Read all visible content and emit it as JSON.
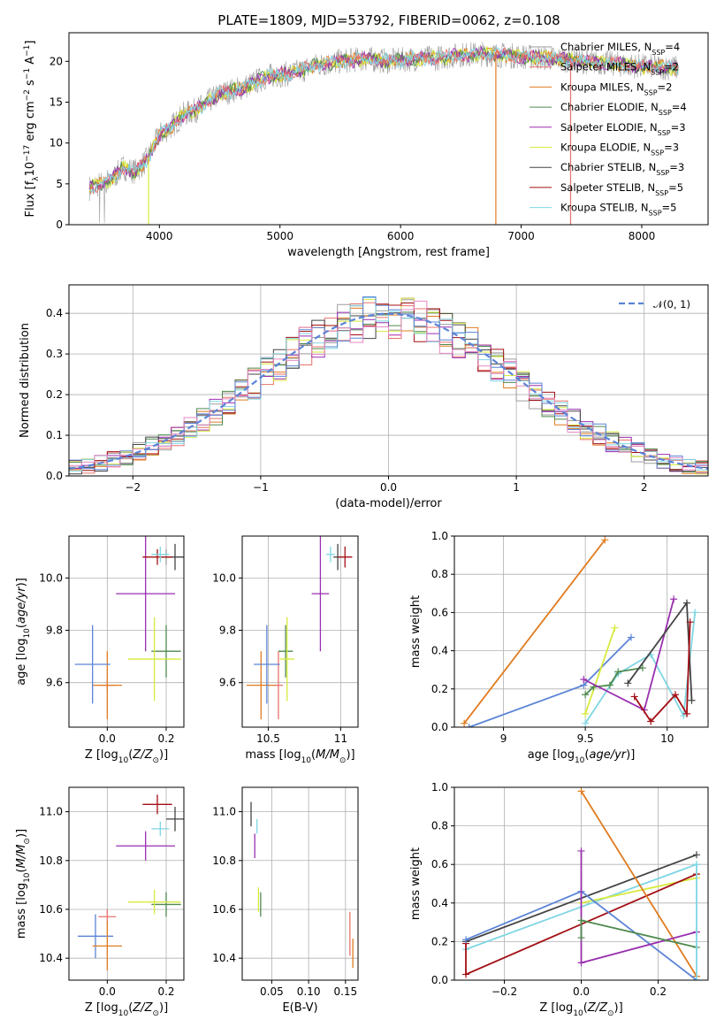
{
  "title": "PLATE=1809, MJD=53792, FIBERID=0062, z=0.108",
  "models": [
    {
      "key": "cm",
      "label": "Chabrier MILES, N",
      "sub": "SSP",
      "n": "=4",
      "color": "#9e9e9e"
    },
    {
      "key": "sm",
      "label": "Salpeter MILES, N",
      "sub": "SSP",
      "n": "=2",
      "color": "#e8736b"
    },
    {
      "key": "km",
      "label": "Kroupa MILES, N",
      "sub": "SSP",
      "n": "=2",
      "color": "#e07b20"
    },
    {
      "key": "ce",
      "label": "Chabrier ELODIE, N",
      "sub": "SSP",
      "n": "=4",
      "color": "#4f8a4f"
    },
    {
      "key": "se",
      "label": "Salpeter ELODIE, N",
      "sub": "SSP",
      "n": "=3",
      "color": "#9a2fb0"
    },
    {
      "key": "ke",
      "label": "Kroupa ELODIE, N",
      "sub": "SSP",
      "n": "=3",
      "color": "#d7ea3c"
    },
    {
      "key": "cs",
      "label": "Chabrier STELIB, N",
      "sub": "SSP",
      "n": "=3",
      "color": "#444444"
    },
    {
      "key": "ss",
      "label": "Salpeter STELIB, N",
      "sub": "SSP",
      "n": "=5",
      "color": "#a30f15"
    },
    {
      "key": "ks",
      "label": "Kroupa STELIB, N",
      "sub": "SSP",
      "n": "=5",
      "color": "#7fd6e3"
    }
  ],
  "chart_data": [
    {
      "id": "spectrum",
      "type": "line",
      "xlabel": "wavelength [Angstrom, rest frame]",
      "ylabel": "Flux [f",
      "xlim": [
        3250,
        8550
      ],
      "ylim": [
        0,
        23.5
      ],
      "xticks": [
        4000,
        5000,
        6000,
        7000,
        8000
      ],
      "yticks": [
        0,
        5,
        10,
        15,
        20
      ],
      "continuum": {
        "x": [
          3420,
          3600,
          3700,
          3800,
          3900,
          4000,
          4100,
          4200,
          4300,
          4500,
          4700,
          4900,
          5100,
          5300,
          5500,
          5700,
          5900,
          6100,
          6300,
          6500,
          6700,
          6900,
          7100,
          7300,
          7500,
          7700,
          7900,
          8100,
          8300
        ],
        "y": [
          4.5,
          5.5,
          7,
          6.5,
          8,
          11,
          12,
          13.5,
          14,
          16,
          16.8,
          18.2,
          18.5,
          19.5,
          20,
          20.3,
          20,
          20.3,
          20.4,
          20.8,
          20.9,
          20.7,
          20.5,
          20.3,
          20.0,
          19.8,
          19.5,
          19.3,
          19.2
        ]
      },
      "legend": "right"
    },
    {
      "id": "residuals",
      "type": "bar",
      "xlabel": "(data-model)/error",
      "ylabel": "Normed distribution",
      "xlim": [
        -2.5,
        2.5
      ],
      "ylim": [
        0,
        0.47
      ],
      "xticks": [
        -2,
        -1,
        0,
        1,
        2
      ],
      "yticks": [
        0.0,
        0.1,
        0.2,
        0.3,
        0.4
      ],
      "gauss_label": "𝒩(0, 1)",
      "bins": 50,
      "legend": "top-right"
    },
    {
      "id": "age_vs_Z",
      "type": "scatter",
      "xlabel": "Z [log",
      "ylabel": "age  [log",
      "xlim": [
        -0.13,
        0.26
      ],
      "ylim": [
        9.43,
        10.16
      ],
      "xticks": [
        0.0,
        0.2
      ],
      "yticks": [
        9.6,
        9.8,
        10.0
      ],
      "points": [
        {
          "m": "cm",
          "x": 0.2,
          "y": 10.08,
          "ex": 0.02,
          "ey": 0.03
        },
        {
          "m": "sm",
          "x": 0.0,
          "y": 9.59,
          "ex": 0.03,
          "ey": 0.02
        },
        {
          "m": "km",
          "x": 0.0,
          "y": 9.59,
          "ex": 0.05,
          "ey": 0.13
        },
        {
          "m": "ce",
          "x": 0.2,
          "y": 9.72,
          "ex": 0.05,
          "ey": 0.1
        },
        {
          "m": "se",
          "x": 0.13,
          "y": 9.94,
          "ex": 0.1,
          "ey": 0.22
        },
        {
          "m": "ke",
          "x": 0.16,
          "y": 9.69,
          "ex": 0.09,
          "ey": 0.16
        },
        {
          "m": "cs",
          "x": 0.23,
          "y": 10.08,
          "ex": 0.03,
          "ey": 0.05
        },
        {
          "m": "ss",
          "x": 0.17,
          "y": 10.08,
          "ex": 0.05,
          "ey": 0.03
        },
        {
          "m": "ks",
          "x": 0.18,
          "y": 10.09,
          "ex": 0.03,
          "ey": 0.03
        },
        {
          "m": "blue",
          "x": -0.05,
          "y": 9.67,
          "ex": 0.06,
          "ey": 0.15
        }
      ]
    },
    {
      "id": "age_vs_mass",
      "type": "scatter",
      "xlabel": "mass [log",
      "ylabel": "",
      "xlim": [
        10.32,
        11.12
      ],
      "ylim": [
        9.43,
        10.16
      ],
      "xticks": [
        10.5,
        11.0
      ],
      "yticks": [
        9.6,
        9.8,
        10.0
      ],
      "points": [
        {
          "m": "sm",
          "x": 10.57,
          "y": 9.59,
          "ex": 0.03,
          "ey": 0.13
        },
        {
          "m": "km",
          "x": 10.45,
          "y": 9.59,
          "ex": 0.1,
          "ey": 0.13
        },
        {
          "m": "ce",
          "x": 10.62,
          "y": 9.72,
          "ex": 0.05,
          "ey": 0.1
        },
        {
          "m": "ke",
          "x": 10.63,
          "y": 9.69,
          "ex": 0.05,
          "ey": 0.16
        },
        {
          "m": "blue",
          "x": 10.49,
          "y": 9.67,
          "ex": 0.09,
          "ey": 0.15
        },
        {
          "m": "se",
          "x": 10.86,
          "y": 9.94,
          "ex": 0.06,
          "ey": 0.22
        },
        {
          "m": "ks",
          "x": 10.93,
          "y": 10.09,
          "ex": 0.03,
          "ey": 0.03
        },
        {
          "m": "cs",
          "x": 10.98,
          "y": 10.08,
          "ex": 0.03,
          "ey": 0.05
        },
        {
          "m": "ss",
          "x": 11.03,
          "y": 10.08,
          "ex": 0.05,
          "ey": 0.04
        }
      ]
    },
    {
      "id": "mw_vs_age",
      "type": "line",
      "xlabel": "age  [log",
      "ylabel": "mass weight",
      "xlim": [
        8.7,
        10.25
      ],
      "ylim": [
        0,
        1
      ],
      "xticks": [
        9.0,
        9.5,
        10.0
      ],
      "yticks": [
        0.0,
        0.2,
        0.4,
        0.6,
        0.8,
        1.0
      ],
      "series": [
        {
          "m": "km",
          "x": [
            8.76,
            9.62
          ],
          "y": [
            0.02,
            0.98
          ]
        },
        {
          "m": "blue",
          "x": [
            8.79,
            9.49,
            9.78
          ],
          "y": [
            0.0,
            0.22,
            0.47
          ]
        },
        {
          "m": "ke",
          "x": [
            9.5,
            9.68
          ],
          "y": [
            0.07,
            0.52
          ]
        },
        {
          "m": "ks",
          "x": [
            9.5,
            9.7,
            9.9,
            10.1,
            10.17
          ],
          "y": [
            0.02,
            0.28,
            0.38,
            0.06,
            0.6
          ]
        },
        {
          "m": "ce",
          "x": [
            9.5,
            9.55,
            9.65,
            9.7,
            9.85
          ],
          "y": [
            0.17,
            0.21,
            0.22,
            0.29,
            0.31
          ]
        },
        {
          "m": "se",
          "x": [
            9.49,
            9.86,
            10.04
          ],
          "y": [
            0.25,
            0.09,
            0.67
          ]
        },
        {
          "m": "cs",
          "x": [
            9.76,
            10.12,
            10.15
          ],
          "y": [
            0.23,
            0.65,
            0.14
          ]
        },
        {
          "m": "ss",
          "x": [
            9.8,
            9.9,
            10.05,
            10.12,
            10.14
          ],
          "y": [
            0.16,
            0.03,
            0.17,
            0.07,
            0.55
          ]
        }
      ]
    },
    {
      "id": "mass_vs_Z",
      "type": "scatter",
      "xlabel": "Z [log",
      "ylabel": "mass [log",
      "xlim": [
        -0.13,
        0.26
      ],
      "ylim": [
        10.31,
        11.1
      ],
      "xticks": [
        0.0,
        0.2
      ],
      "yticks": [
        10.4,
        10.6,
        10.8,
        11.0
      ],
      "points": [
        {
          "m": "ss",
          "x": 0.17,
          "y": 11.03,
          "ex": 0.05,
          "ey": 0.04
        },
        {
          "m": "cs",
          "x": 0.23,
          "y": 10.97,
          "ex": 0.03,
          "ey": 0.05
        },
        {
          "m": "ks",
          "x": 0.18,
          "y": 10.93,
          "ex": 0.03,
          "ey": 0.03
        },
        {
          "m": "se",
          "x": 0.13,
          "y": 10.86,
          "ex": 0.1,
          "ey": 0.06
        },
        {
          "m": "ce",
          "x": 0.2,
          "y": 10.62,
          "ex": 0.05,
          "ey": 0.05
        },
        {
          "m": "ke",
          "x": 0.16,
          "y": 10.63,
          "ex": 0.09,
          "ey": 0.05
        },
        {
          "m": "blue",
          "x": -0.04,
          "y": 10.49,
          "ex": 0.06,
          "ey": 0.09
        },
        {
          "m": "sm",
          "x": 0.0,
          "y": 10.57,
          "ex": 0.03,
          "ey": 0.03
        },
        {
          "m": "km",
          "x": 0.0,
          "y": 10.45,
          "ex": 0.05,
          "ey": 0.1
        }
      ]
    },
    {
      "id": "mass_vs_ebv",
      "type": "scatter",
      "xlabel": "E(B-V)",
      "ylabel": "",
      "xlim": [
        0.01,
        0.167
      ],
      "ylim": [
        10.31,
        11.1
      ],
      "xticks": [
        0.05,
        0.1,
        0.15
      ],
      "xtick_labels": [
        "0.05",
        "0.10",
        "0.15"
      ],
      "yticks": [
        10.4,
        10.6,
        10.8,
        11.0
      ],
      "points": [
        {
          "m": "cs",
          "x": 0.022,
          "y": 10.99,
          "ex": 0,
          "ey": 0.05
        },
        {
          "m": "ks",
          "x": 0.03,
          "y": 10.94,
          "ex": 0,
          "ey": 0.03
        },
        {
          "m": "se",
          "x": 0.027,
          "y": 10.86,
          "ex": 0,
          "ey": 0.05
        },
        {
          "m": "ke",
          "x": 0.032,
          "y": 10.64,
          "ex": 0,
          "ey": 0.05
        },
        {
          "m": "ce",
          "x": 0.035,
          "y": 10.62,
          "ex": 0,
          "ey": 0.05
        },
        {
          "m": "sm",
          "x": 0.156,
          "y": 10.5,
          "ex": 0,
          "ey": 0.09
        },
        {
          "m": "km",
          "x": 0.16,
          "y": 10.42,
          "ex": 0,
          "ey": 0.06
        }
      ]
    },
    {
      "id": "mw_vs_Z",
      "type": "line",
      "xlabel": "Z [log",
      "ylabel": "mass weight",
      "xlim": [
        -0.33,
        0.33
      ],
      "ylim": [
        0,
        1
      ],
      "xticks": [
        -0.2,
        0.0,
        0.2
      ],
      "xtick_labels": [
        "−0.2",
        "0.0",
        "0.2"
      ],
      "yticks": [
        0.0,
        0.2,
        0.4,
        0.6,
        0.8,
        1.0
      ],
      "series": [
        {
          "m": "cs",
          "x": [
            -0.3,
            0.3
          ],
          "y": [
            0.2,
            0.65
          ]
        },
        {
          "m": "ks",
          "x": [
            -0.3,
            0.3
          ],
          "y": [
            0.16,
            0.6
          ]
        },
        {
          "m": "ke",
          "x": [
            0.0,
            0.3
          ],
          "y": [
            0.4,
            0.53
          ]
        },
        {
          "m": "ss",
          "x": [
            -0.3,
            -0.3,
            0.3
          ],
          "y": [
            0.19,
            0.03,
            0.55
          ]
        },
        {
          "m": "km",
          "x": [
            0.0,
            0.3
          ],
          "y": [
            0.98,
            0.02
          ]
        },
        {
          "m": "blue",
          "x": [
            -0.3,
            0.0,
            0.3
          ],
          "y": [
            0.21,
            0.46,
            0.0
          ]
        },
        {
          "m": "se",
          "x": [
            0.0,
            0.0,
            0.3
          ],
          "y": [
            0.67,
            0.09,
            0.25
          ]
        },
        {
          "m": "ce",
          "x": [
            0.0,
            0.0,
            0.3
          ],
          "y": [
            0.22,
            0.31,
            0.17
          ]
        },
        {
          "m": "ks2",
          "x": [
            0.3,
            0.3
          ],
          "y": [
            0.0,
            0.6
          ]
        }
      ]
    }
  ]
}
